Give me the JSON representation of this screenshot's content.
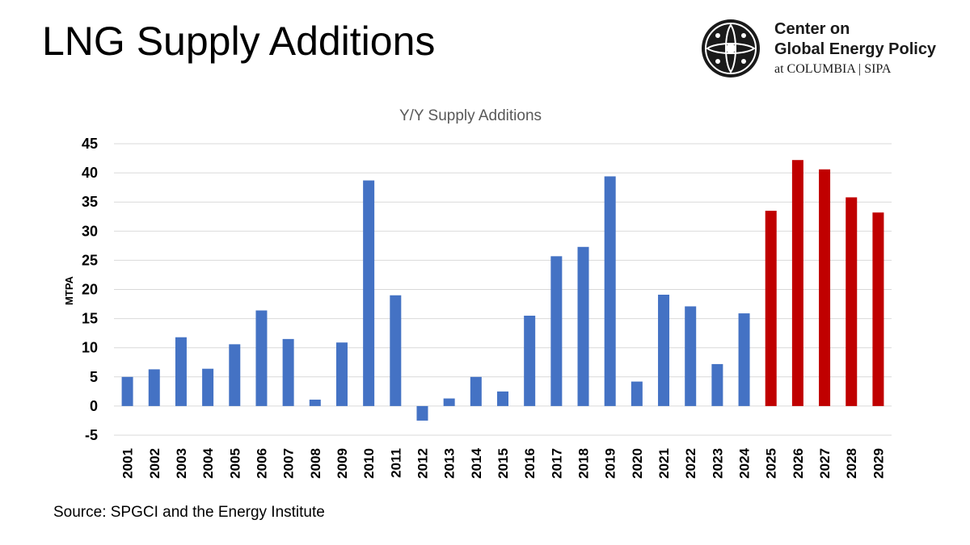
{
  "header": {
    "title": "LNG Supply Additions"
  },
  "logo": {
    "line1": "Center on",
    "line2": "Global Energy Policy",
    "line3": "at COLUMBIA | SIPA",
    "icon": "globe-seal-icon"
  },
  "footer": {
    "source": "Source: SPGCI and the Energy Institute"
  },
  "colors": {
    "historical": "#4472C4",
    "forecast": "#C00000",
    "grid": "#D9D9D9",
    "axis_text": "#000000",
    "chart_title": "#595959"
  },
  "chart_data": {
    "type": "bar",
    "title": "Y/Y Supply Additions",
    "xlabel": "",
    "ylabel": "MTPA",
    "ylim": [
      -5,
      45
    ],
    "yticks": [
      45,
      40,
      35,
      30,
      25,
      20,
      15,
      10,
      5,
      0,
      -5
    ],
    "grid": true,
    "categories": [
      "2001",
      "2002",
      "2003",
      "2004",
      "2005",
      "2006",
      "2007",
      "2008",
      "2009",
      "2010",
      "2011",
      "2012",
      "2013",
      "2014",
      "2015",
      "2016",
      "2017",
      "2018",
      "2019",
      "2020",
      "2021",
      "2022",
      "2023",
      "2024",
      "2025",
      "2026",
      "2027",
      "2028",
      "2029"
    ],
    "values": [
      5.0,
      6.3,
      11.8,
      6.4,
      10.6,
      16.4,
      11.5,
      1.1,
      10.9,
      38.7,
      19.0,
      -2.5,
      1.3,
      5.0,
      2.5,
      15.5,
      25.7,
      27.3,
      39.4,
      4.2,
      19.1,
      17.1,
      7.2,
      15.9,
      33.5,
      42.2,
      40.6,
      35.8,
      33.2
    ],
    "forecast_from": "2025"
  }
}
